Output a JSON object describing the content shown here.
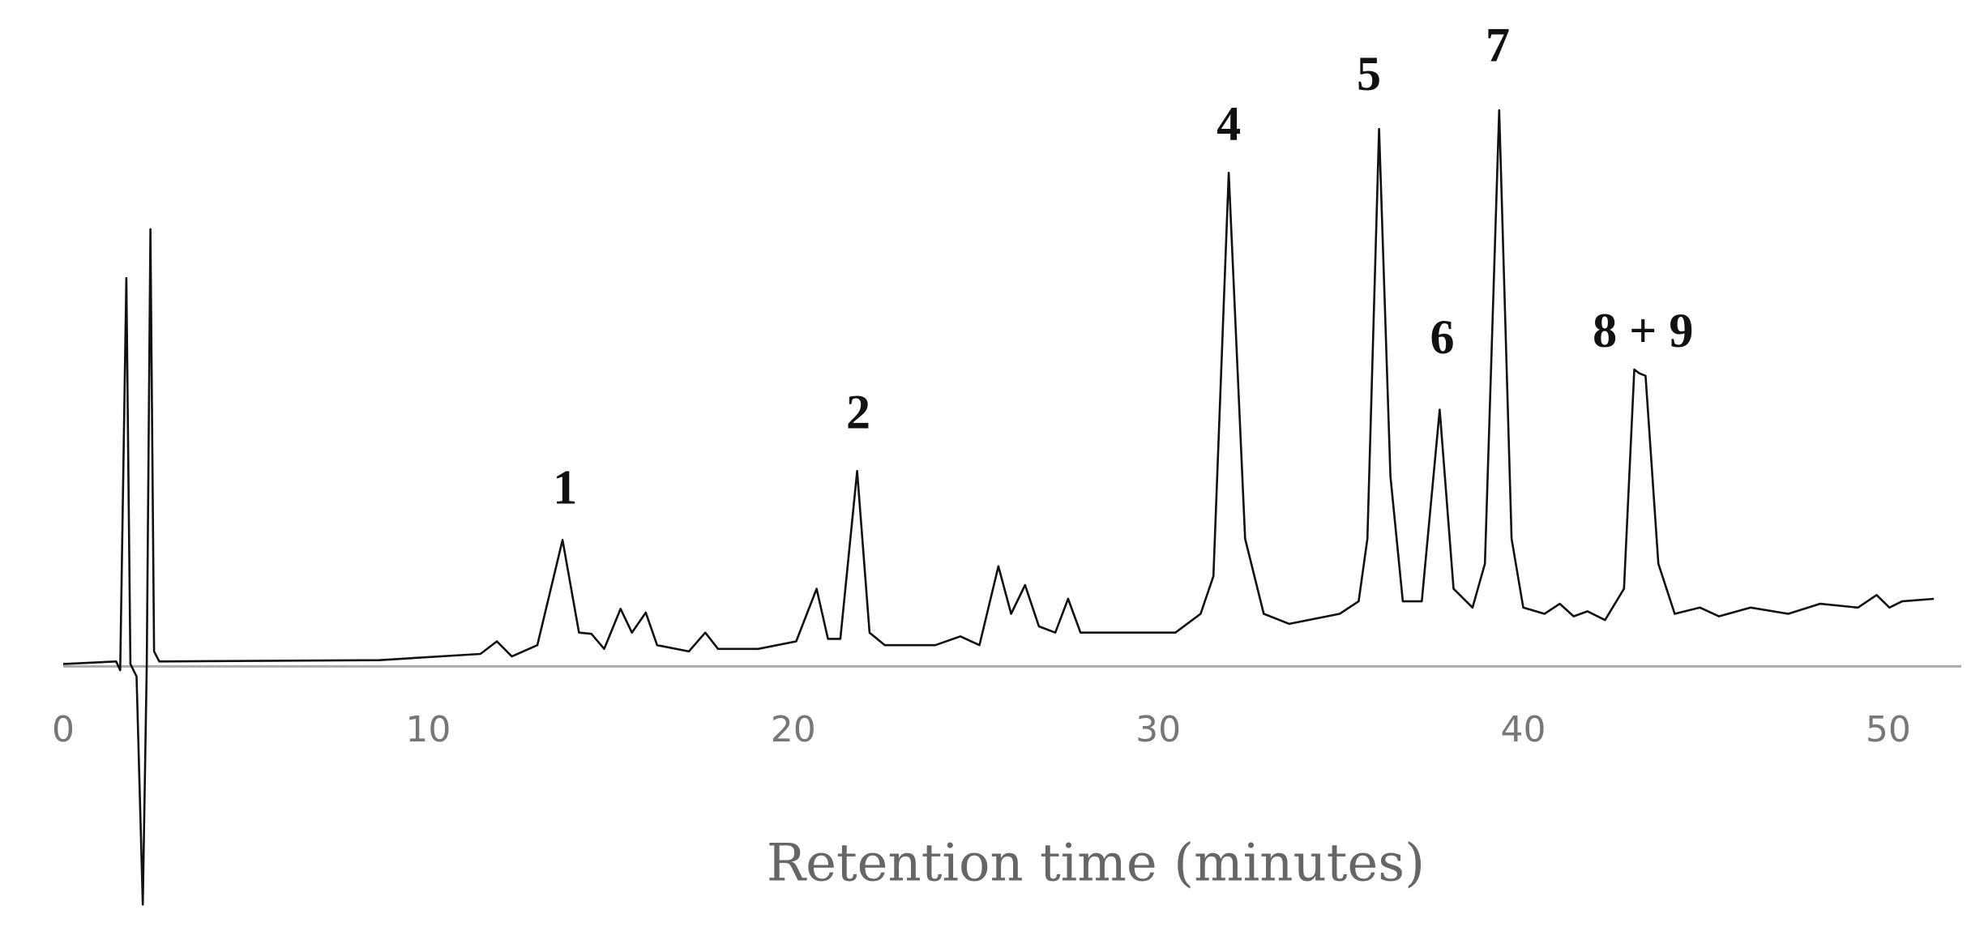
{
  "chart_data": {
    "type": "line",
    "x_label": "Retention time (minutes)",
    "xlim": [
      0,
      52
    ],
    "xticks": [
      0,
      10,
      20,
      30,
      40,
      50
    ],
    "ylim": [
      -210,
      530
    ],
    "grid": false,
    "series": [
      {
        "color": "#111111",
        "x": [
          0,
          1.45,
          1.56,
          1.73,
          1.84,
          2.01,
          2.18,
          2.29,
          2.39,
          2.49,
          2.63,
          8.66,
          11.43,
          11.88,
          12.29,
          12.99,
          13.68,
          14.13,
          14.47,
          14.82,
          15.27,
          15.58,
          15.96,
          16.27,
          17.14,
          17.59,
          17.94,
          19.04,
          20.08,
          20.64,
          20.95,
          21.29,
          21.75,
          22.09,
          22.51,
          23.89,
          24.58,
          25.1,
          25.62,
          25.97,
          26.35,
          26.73,
          27.18,
          27.53,
          27.87,
          28.39,
          30.47,
          31.16,
          31.51,
          31.93,
          32.38,
          32.89,
          33.59,
          34.97,
          35.49,
          35.73,
          36.05,
          36.36,
          36.7,
          37.22,
          37.71,
          38.09,
          38.61,
          38.95,
          39.34,
          39.68,
          40.0,
          40.58,
          41.0,
          41.38,
          41.76,
          42.24,
          42.76,
          43.04,
          43.18,
          43.35,
          43.7,
          44.15,
          44.84,
          45.36,
          46.23,
          47.26,
          48.13,
          49.17,
          49.68,
          50.03,
          50.38,
          51.25
        ],
        "values": [
          0,
          2,
          -5,
          308,
          0,
          -10,
          -192,
          0,
          347,
          10,
          2,
          3,
          8,
          18,
          6,
          15,
          99,
          25,
          24,
          12,
          44,
          25,
          41,
          15,
          10,
          25,
          12,
          12,
          18,
          60,
          20,
          20,
          154,
          25,
          15,
          15,
          22,
          15,
          78,
          40,
          63,
          30,
          25,
          52,
          25,
          25,
          25,
          40,
          70,
          392,
          100,
          40,
          32,
          40,
          50,
          100,
          427,
          150,
          50,
          50,
          203,
          60,
          45,
          80,
          442,
          100,
          45,
          40,
          48,
          38,
          42,
          35,
          60,
          235,
          232,
          230,
          80,
          40,
          45,
          38,
          45,
          40,
          48,
          45,
          55,
          45,
          50,
          52
        ]
      }
    ],
    "annotations": [
      {
        "text": "1",
        "x": 13.75,
        "y": 137
      },
      {
        "text": "2",
        "x": 21.78,
        "y": 197
      },
      {
        "text": "4",
        "x": 31.93,
        "y": 427
      },
      {
        "text": "5",
        "x": 35.77,
        "y": 467
      },
      {
        "text": "6",
        "x": 37.78,
        "y": 257
      },
      {
        "text": "7",
        "x": 39.3,
        "y": 490
      },
      {
        "text": "8 + 9",
        "x": 43.28,
        "y": 262
      }
    ]
  }
}
